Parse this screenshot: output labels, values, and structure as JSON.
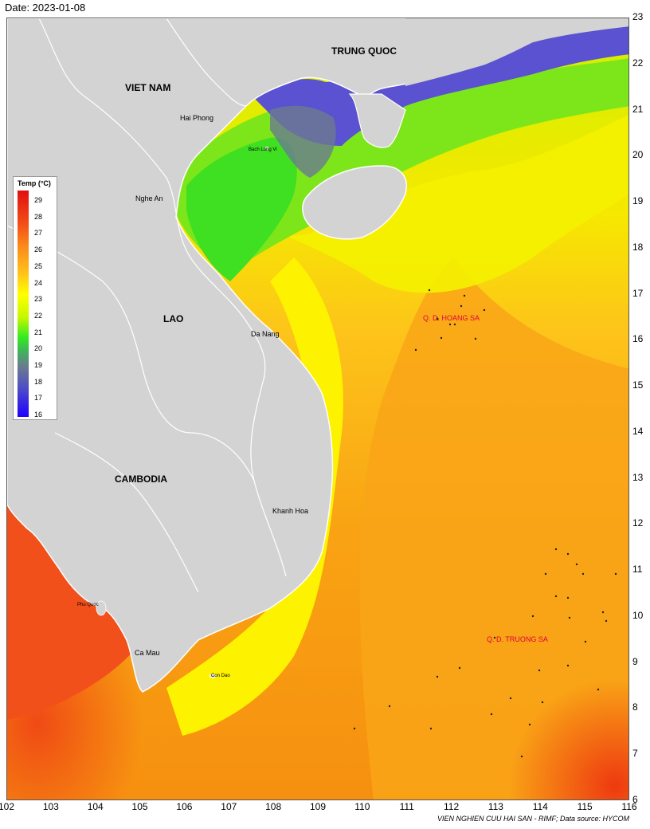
{
  "header": {
    "date_text": "Date: 2023-01-08"
  },
  "regions": {
    "china": "TRUNG QUOC",
    "vietnam": "VIET NAM",
    "laos": "LAO",
    "cambodia": "CAMBODIA"
  },
  "places": {
    "hai_phong": "Hai Phong",
    "bach_long_vi": "Bach Long Vi",
    "nghe_an": "Nghe An",
    "da_nang": "Da Nang",
    "khanh_hoa": "Khanh Hoa",
    "phu_quoc": "Phu Quoc",
    "ca_mau": "Ca Mau",
    "con_dao": "Con Dao"
  },
  "islands": {
    "hoang_sa": "Q. D. HOANG SA",
    "truong_sa": "Q. D. TRUONG SA"
  },
  "legend": {
    "title": "Temp (°C)",
    "ticks": [
      "29",
      "28",
      "27",
      "26",
      "25",
      "24",
      "23",
      "22",
      "21",
      "20",
      "19",
      "18",
      "17",
      "16"
    ],
    "colors": [
      "#e01010",
      "#f24a16",
      "#fb8c1a",
      "#ffbf1a",
      "#ffff00",
      "#c6f700",
      "#33ea22",
      "#3fb35a",
      "#6a7a90",
      "#4f4fc4",
      "#2000ff"
    ]
  },
  "axes": {
    "x_ticks": [
      "102",
      "103",
      "104",
      "105",
      "106",
      "107",
      "108",
      "109",
      "110",
      "111",
      "112",
      "113",
      "114",
      "115",
      "116"
    ],
    "y_ticks": [
      "23",
      "22",
      "21",
      "20",
      "19",
      "18",
      "17",
      "16",
      "15",
      "14",
      "13",
      "12",
      "11",
      "10",
      "9",
      "8",
      "7",
      "6"
    ]
  },
  "credit": "VIEN NGHIEN CUU HAI SAN - RIMF; Data source: HYCOM"
}
